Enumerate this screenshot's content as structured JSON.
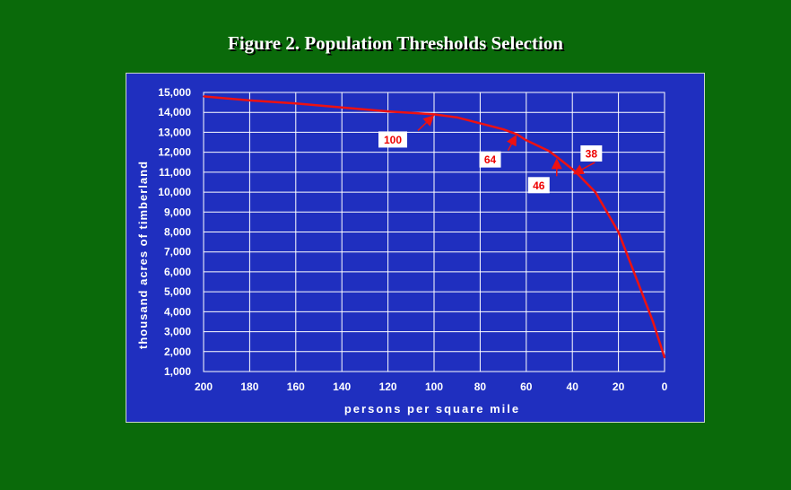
{
  "page": {
    "title": "Figure 2.  Population Thresholds Selection"
  },
  "colors": {
    "background": "#0a6a0a",
    "panel": "#1f2fbf",
    "grid": "#ffffff",
    "line": "#ee1111",
    "label_text": "#ee0000"
  },
  "chart_data": {
    "type": "line",
    "title": "Figure 2.  Population Thresholds Selection",
    "xlabel": "persons per square mile",
    "ylabel": "thousand acres of timberland",
    "xlim": [
      200,
      0
    ],
    "x_reversed": true,
    "ylim": [
      1000,
      15000
    ],
    "grid": true,
    "x_ticks": [
      "200",
      "180",
      "160",
      "140",
      "120",
      "100",
      "80",
      "60",
      "40",
      "20",
      "0"
    ],
    "y_ticks": [
      "1,000",
      "2,000",
      "3,000",
      "4,000",
      "5,000",
      "6,000",
      "7,000",
      "8,000",
      "9,000",
      "10,000",
      "11,000",
      "12,000",
      "13,000",
      "14,000",
      "15,000"
    ],
    "series": [
      {
        "x": [
          200,
          180,
          160,
          140,
          120,
          100,
          90,
          80,
          70,
          64,
          60,
          50,
          46,
          40,
          38,
          30,
          20,
          10,
          5,
          0
        ],
        "y": [
          14800,
          14600,
          14450,
          14250,
          14050,
          13900,
          13750,
          13450,
          13150,
          12900,
          12600,
          12050,
          11700,
          11150,
          10950,
          10000,
          8000,
          5000,
          3500,
          1700
        ]
      }
    ],
    "annotations": [
      {
        "label": "100",
        "x": 100,
        "y": 13900
      },
      {
        "label": "64",
        "x": 64,
        "y": 12900
      },
      {
        "label": "46",
        "x": 46,
        "y": 11700
      },
      {
        "label": "38",
        "x": 38,
        "y": 10950
      }
    ]
  }
}
